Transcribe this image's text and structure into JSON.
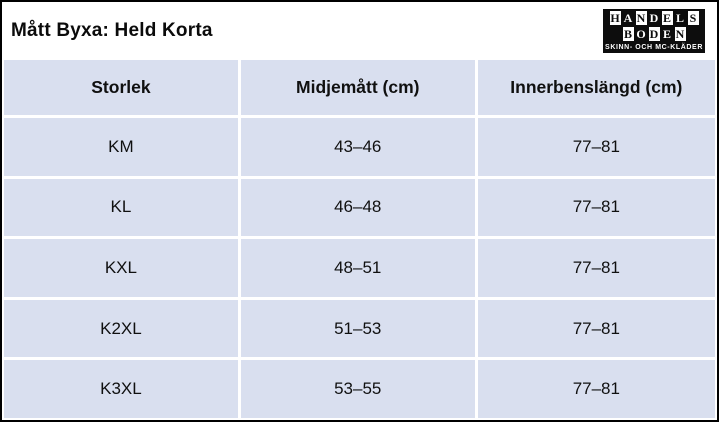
{
  "title": "Mått Byxa: Held Korta",
  "logo": {
    "line1": [
      "H",
      "A",
      "N",
      "D",
      "E",
      "L",
      "S"
    ],
    "line2": [
      "B",
      "O",
      "D",
      "E",
      "N"
    ],
    "tagline": "SKINN- OCH MC-KLÄDER"
  },
  "table": {
    "headers": [
      "Storlek",
      "Midjemått (cm)",
      "Innerbenslängd (cm)"
    ],
    "rows": [
      [
        "KM",
        "43–46",
        "77–81"
      ],
      [
        "KL",
        "46–48",
        "77–81"
      ],
      [
        "KXL",
        "48–51",
        "77–81"
      ],
      [
        "K2XL",
        "51–53",
        "77–81"
      ],
      [
        "K3XL",
        "53–55",
        "77–81"
      ]
    ]
  },
  "colors": {
    "cell_background": "#d9dfef",
    "gridline": "#ffffff",
    "outer_border": "#000000",
    "text": "#101010"
  },
  "chart_data": {
    "type": "table",
    "title": "Mått Byxa: Held Korta",
    "columns": [
      "Storlek",
      "Midjemått (cm)",
      "Innerbenslängd (cm)"
    ],
    "rows": [
      {
        "storlek": "KM",
        "midjematt_cm": "43–46",
        "innerbenslangd_cm": "77–81"
      },
      {
        "storlek": "KL",
        "midjematt_cm": "46–48",
        "innerbenslangd_cm": "77–81"
      },
      {
        "storlek": "KXL",
        "midjematt_cm": "48–51",
        "innerbenslangd_cm": "77–81"
      },
      {
        "storlek": "K2XL",
        "midjematt_cm": "51–53",
        "innerbenslangd_cm": "77–81"
      },
      {
        "storlek": "K3XL",
        "midjematt_cm": "53–55",
        "innerbenslangd_cm": "77–81"
      }
    ]
  }
}
